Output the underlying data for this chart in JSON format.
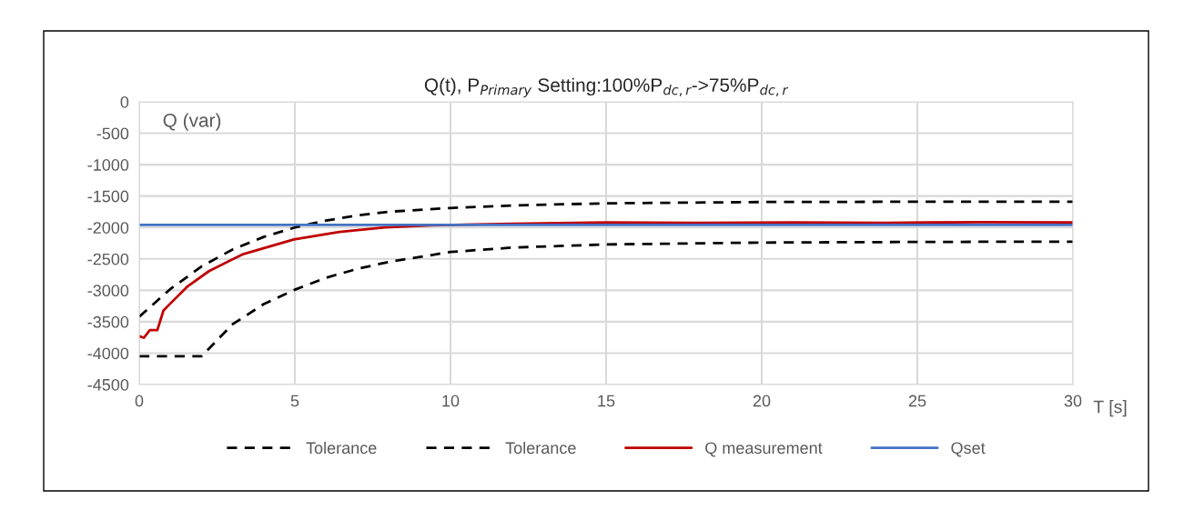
{
  "chart_data": {
    "type": "line",
    "title": "Q(t), P$_{Primary}$ Setting:100%P$_{dc,r}$->75%P$_{dc,r}$",
    "xlabel": "T [s]",
    "ylabel": "Q (var)",
    "xlim": [
      0,
      30
    ],
    "xticks": [
      0,
      5,
      10,
      15,
      20,
      25,
      30
    ],
    "ylim": [
      -4500,
      0
    ],
    "yticks": [
      -4500,
      -4000,
      -3500,
      -3000,
      -2500,
      -2000,
      -1500,
      -1000,
      -500,
      0
    ],
    "grid": true,
    "legend": "bottom",
    "series": [
      {
        "name": "Tolerance",
        "color": "#000000",
        "line_style": "dashed",
        "x": [
          0,
          1,
          2,
          3,
          4,
          5,
          6,
          7,
          8,
          10,
          12,
          15,
          20,
          25,
          30
        ],
        "values": [
          -3420,
          -2980,
          -2620,
          -2350,
          -2150,
          -2000,
          -1890,
          -1810,
          -1750,
          -1690,
          -1650,
          -1615,
          -1595,
          -1590,
          -1590
        ]
      },
      {
        "name": "Tolerance",
        "color": "#000000",
        "line_style": "dashed",
        "x": [
          0,
          1,
          2,
          3,
          4,
          5,
          6,
          7,
          8,
          10,
          12,
          15,
          20,
          25,
          30
        ],
        "values": [
          -4050,
          -4050,
          -4050,
          -3540,
          -3220,
          -2990,
          -2800,
          -2660,
          -2550,
          -2390,
          -2320,
          -2270,
          -2240,
          -2230,
          -2225
        ]
      },
      {
        "name": "Q measurement",
        "color": "#c00000",
        "line_style": "solid",
        "x": [
          0,
          0.15,
          0.34,
          0.58,
          0.78,
          0.97,
          1.56,
          2.24,
          3.31,
          4.97,
          6.43,
          7.9,
          9.36,
          12,
          15,
          18,
          21,
          24,
          27,
          30
        ],
        "values": [
          -3730,
          -3755,
          -3635,
          -3635,
          -3320,
          -3225,
          -2935,
          -2695,
          -2430,
          -2190,
          -2070,
          -2000,
          -1965,
          -1940,
          -1920,
          -1925,
          -1920,
          -1925,
          -1915,
          -1920
        ]
      },
      {
        "name": "Qset",
        "color": "#4472c4",
        "line_style": "solid",
        "x": [
          0,
          30
        ],
        "values": [
          -1960,
          -1960
        ]
      }
    ]
  }
}
